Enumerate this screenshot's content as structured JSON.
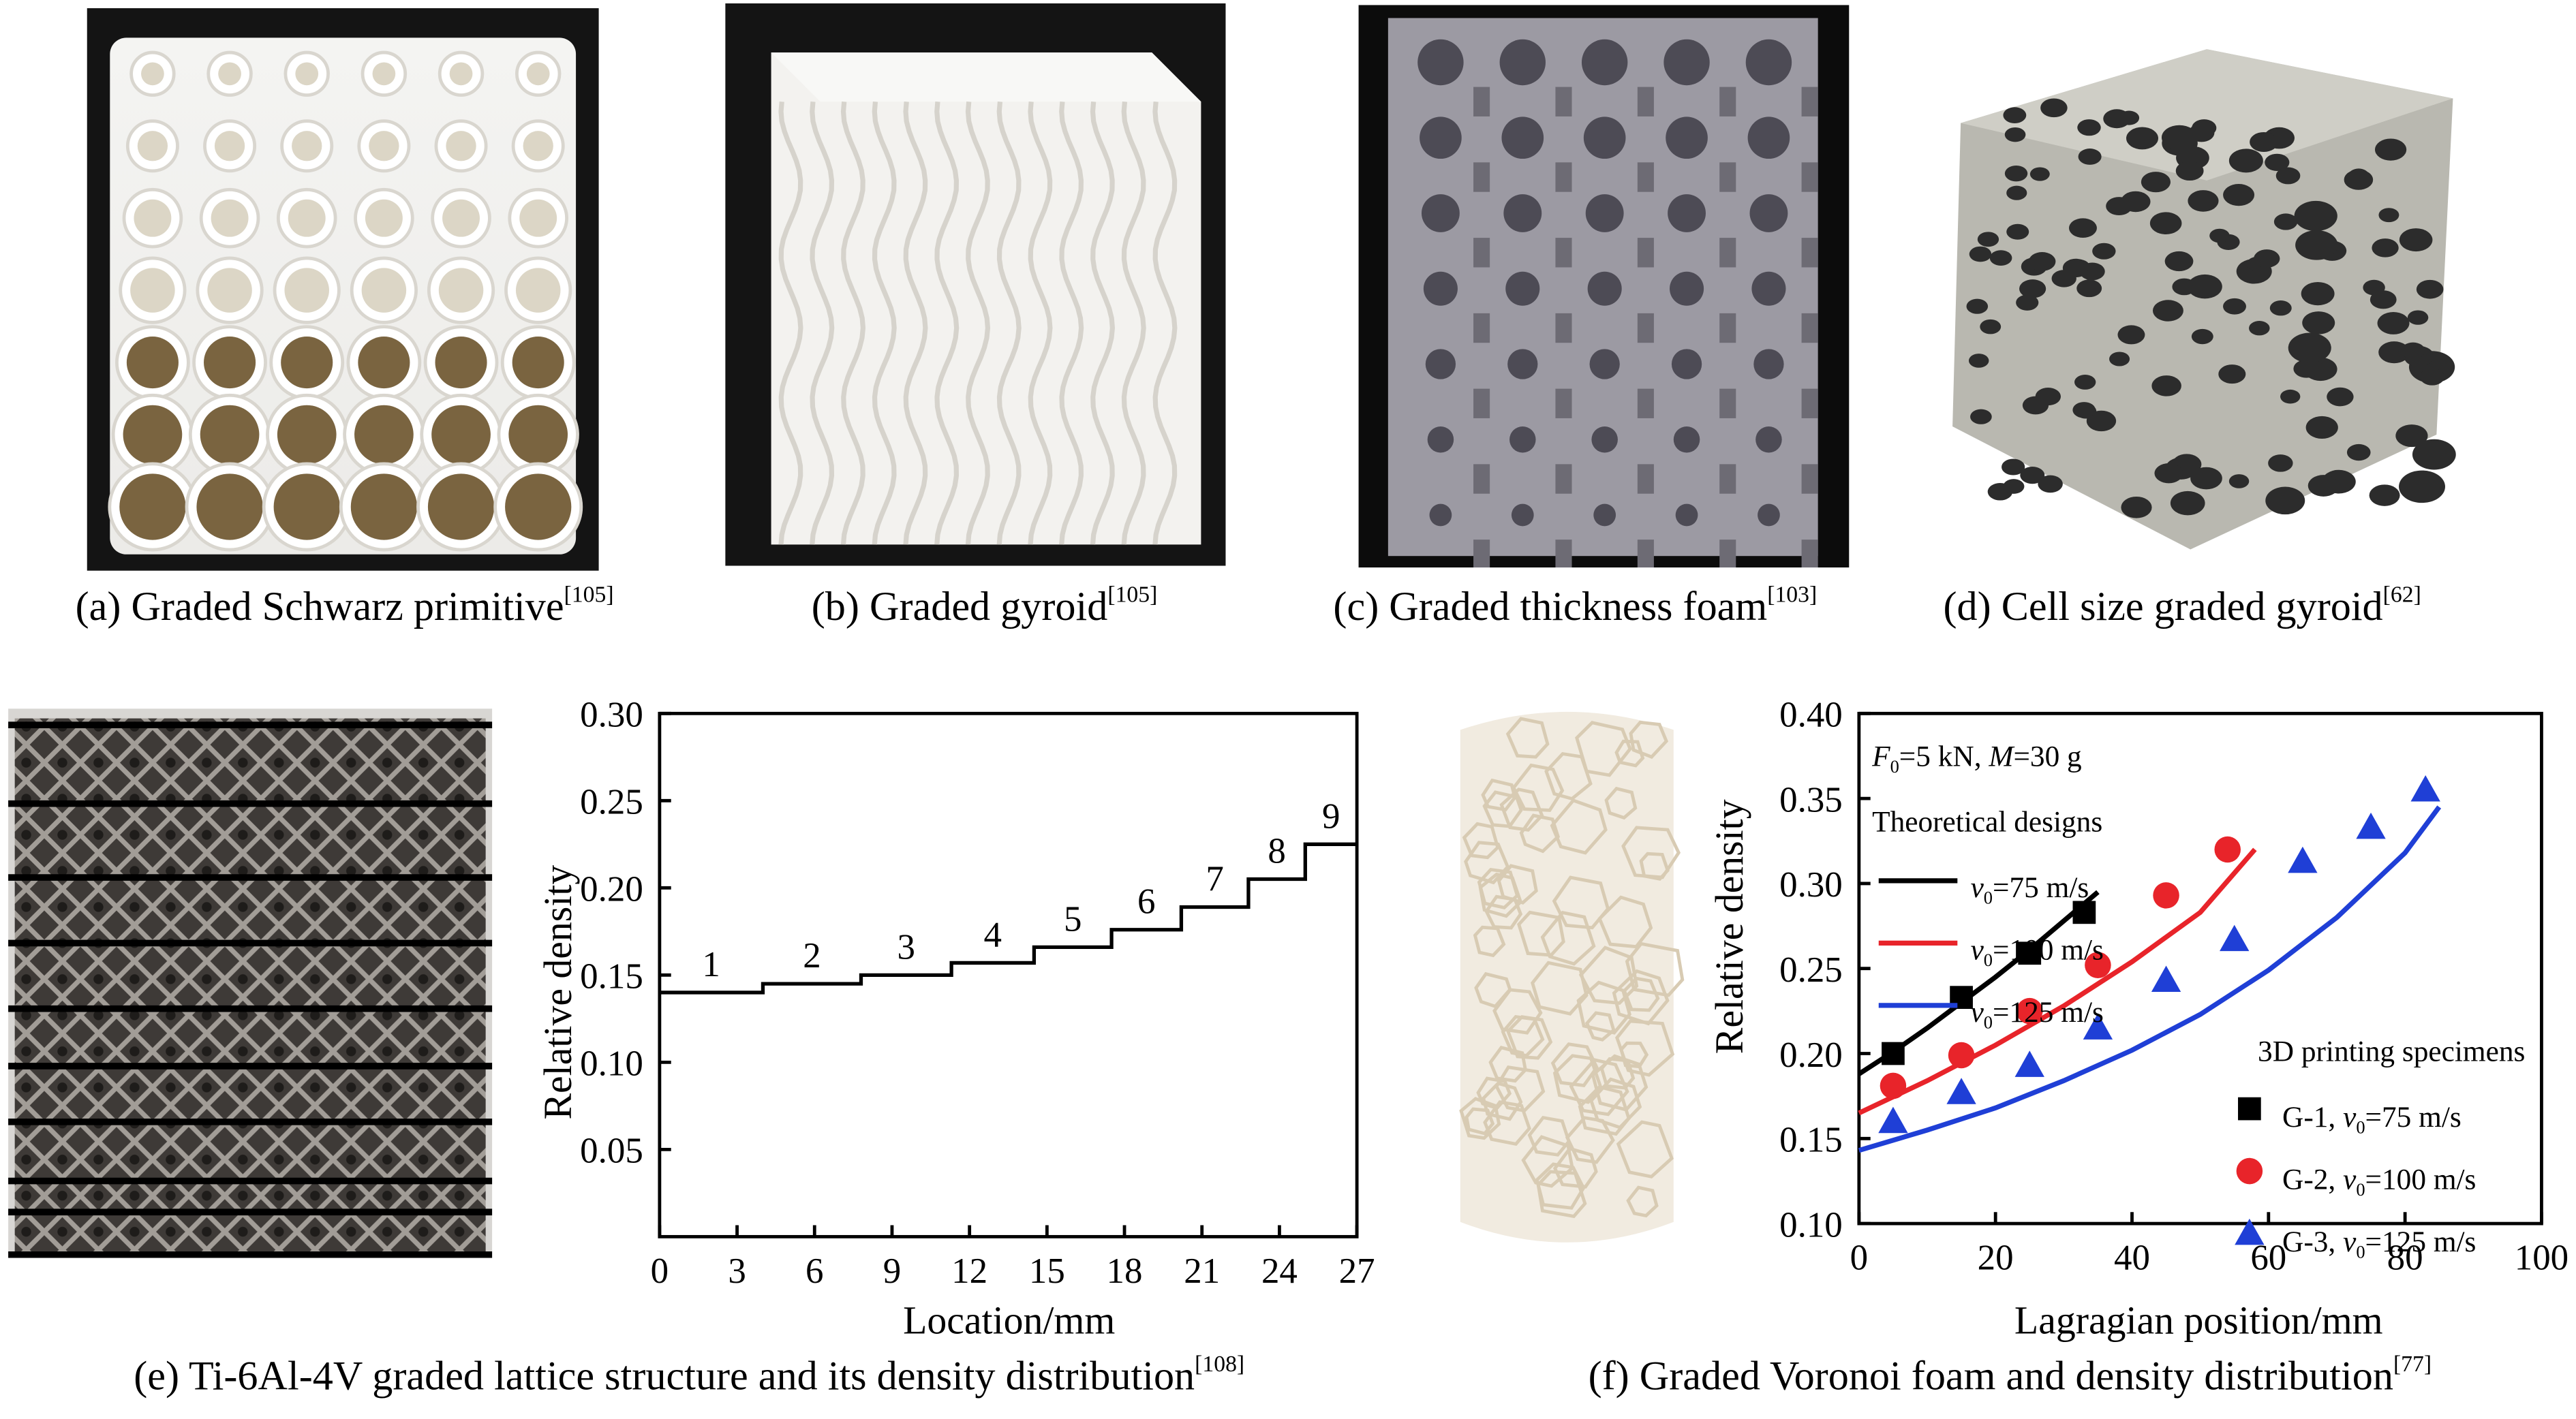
{
  "captions": {
    "a": {
      "text": "(a) Graded Schwarz primitive",
      "ref": "[105]"
    },
    "b": {
      "text": "(b) Graded gyroid",
      "ref": "[105]"
    },
    "c": {
      "text": "(c) Graded thickness foam",
      "ref": "[103]"
    },
    "d": {
      "text": "(d) Cell size graded gyroid",
      "ref": "[62]"
    },
    "e": {
      "text": "(e) Ti-6Al-4V graded lattice structure and its density distribution",
      "ref": "[108]"
    },
    "f": {
      "text": "(f) Graded Voronoi foam and density distribution",
      "ref": "[77]"
    }
  },
  "chart_data": [
    {
      "type": "line",
      "step": true,
      "xlabel": "Location/mm",
      "ylabel": "Relative density",
      "xlim": [
        0,
        27
      ],
      "ylim": [
        0,
        0.3
      ],
      "xticks": [
        0,
        3,
        6,
        9,
        12,
        15,
        18,
        21,
        24,
        27
      ],
      "xtick_labels": [
        "0",
        "3",
        "6",
        "9",
        "12",
        "15",
        "18",
        "21",
        "24",
        "27"
      ],
      "yticks": [
        0.05,
        0.1,
        0.15,
        0.2,
        0.25,
        0.3
      ],
      "ytick_labels": [
        "0.05",
        "0.10",
        "0.15",
        "0.20",
        "0.25",
        "0.30"
      ],
      "segments": [
        {
          "label": "1",
          "x": [
            0,
            4.0
          ],
          "y": 0.14
        },
        {
          "label": "2",
          "x": [
            4.0,
            7.8
          ],
          "y": 0.145
        },
        {
          "label": "3",
          "x": [
            7.8,
            11.3
          ],
          "y": 0.15
        },
        {
          "label": "4",
          "x": [
            11.3,
            14.5
          ],
          "y": 0.157
        },
        {
          "label": "5",
          "x": [
            14.5,
            17.5
          ],
          "y": 0.166
        },
        {
          "label": "6",
          "x": [
            17.5,
            20.2
          ],
          "y": 0.176
        },
        {
          "label": "7",
          "x": [
            20.2,
            22.8
          ],
          "y": 0.189
        },
        {
          "label": "8",
          "x": [
            22.8,
            25.0
          ],
          "y": 0.205
        },
        {
          "label": "9",
          "x": [
            25.0,
            27.0
          ],
          "y": 0.225
        }
      ]
    },
    {
      "type": "scatter",
      "xlabel": "Lagragian position/mm",
      "ylabel": "Relative density",
      "xlim": [
        0,
        100
      ],
      "ylim": [
        0.1,
        0.4
      ],
      "xticks": [
        0,
        20,
        40,
        60,
        80,
        100
      ],
      "xtick_labels": [
        "0",
        "20",
        "40",
        "60",
        "80",
        "100"
      ],
      "yticks": [
        0.1,
        0.15,
        0.2,
        0.25,
        0.3,
        0.35,
        0.4
      ],
      "ytick_labels": [
        "0.10",
        "0.15",
        "0.20",
        "0.25",
        "0.30",
        "0.35",
        "0.40"
      ],
      "annotation": {
        "F": "F",
        "F_sub": "0",
        "F_rest": "=5 kN, ",
        "M": "M",
        "M_rest": "=30 g"
      },
      "legend_top_title": "Theoretical designs",
      "legend_bottom_title": "3D printing specimens",
      "series": [
        {
          "color": "#000000",
          "marker": "square",
          "line_label": {
            "pre": "v",
            "sub": "0",
            "post": "=75 m/s"
          },
          "point_label": {
            "pre": "G-1, ",
            "v": "v",
            "sub": "0",
            "post": "=75 m/s"
          },
          "curve_x": [
            0,
            5,
            10,
            15,
            20,
            25,
            30,
            35
          ],
          "curve_y": [
            0.188,
            0.201,
            0.215,
            0.23,
            0.245,
            0.261,
            0.278,
            0.295
          ],
          "points_x": [
            5,
            15,
            25,
            33
          ],
          "points_y": [
            0.2,
            0.233,
            0.259,
            0.283
          ]
        },
        {
          "color": "#e8242a",
          "marker": "circle",
          "line_label": {
            "pre": "v",
            "sub": "0",
            "post": "=100 m/s"
          },
          "point_label": {
            "pre": "G-2, ",
            "v": "v",
            "sub": "0",
            "post": "=100 m/s"
          },
          "curve_x": [
            0,
            10,
            20,
            30,
            40,
            50,
            58
          ],
          "curve_y": [
            0.165,
            0.184,
            0.205,
            0.228,
            0.254,
            0.283,
            0.32
          ],
          "points_x": [
            5,
            15,
            25,
            35,
            45,
            54
          ],
          "points_y": [
            0.181,
            0.199,
            0.225,
            0.252,
            0.293,
            0.32
          ]
        },
        {
          "color": "#1f3fd6",
          "marker": "triangle",
          "line_label": {
            "pre": "v",
            "sub": "0",
            "post": "=125 m/s"
          },
          "point_label": {
            "pre": "G-3, ",
            "v": "v",
            "sub": "0",
            "post": "=125 m/s"
          },
          "curve_x": [
            0,
            10,
            20,
            30,
            40,
            50,
            60,
            70,
            80,
            85
          ],
          "curve_y": [
            0.143,
            0.155,
            0.168,
            0.184,
            0.202,
            0.223,
            0.249,
            0.28,
            0.318,
            0.345
          ],
          "points_x": [
            5,
            15,
            25,
            35,
            45,
            55,
            65,
            75,
            83
          ],
          "points_y": [
            0.16,
            0.177,
            0.193,
            0.215,
            0.243,
            0.267,
            0.313,
            0.333,
            0.355
          ]
        }
      ]
    }
  ]
}
